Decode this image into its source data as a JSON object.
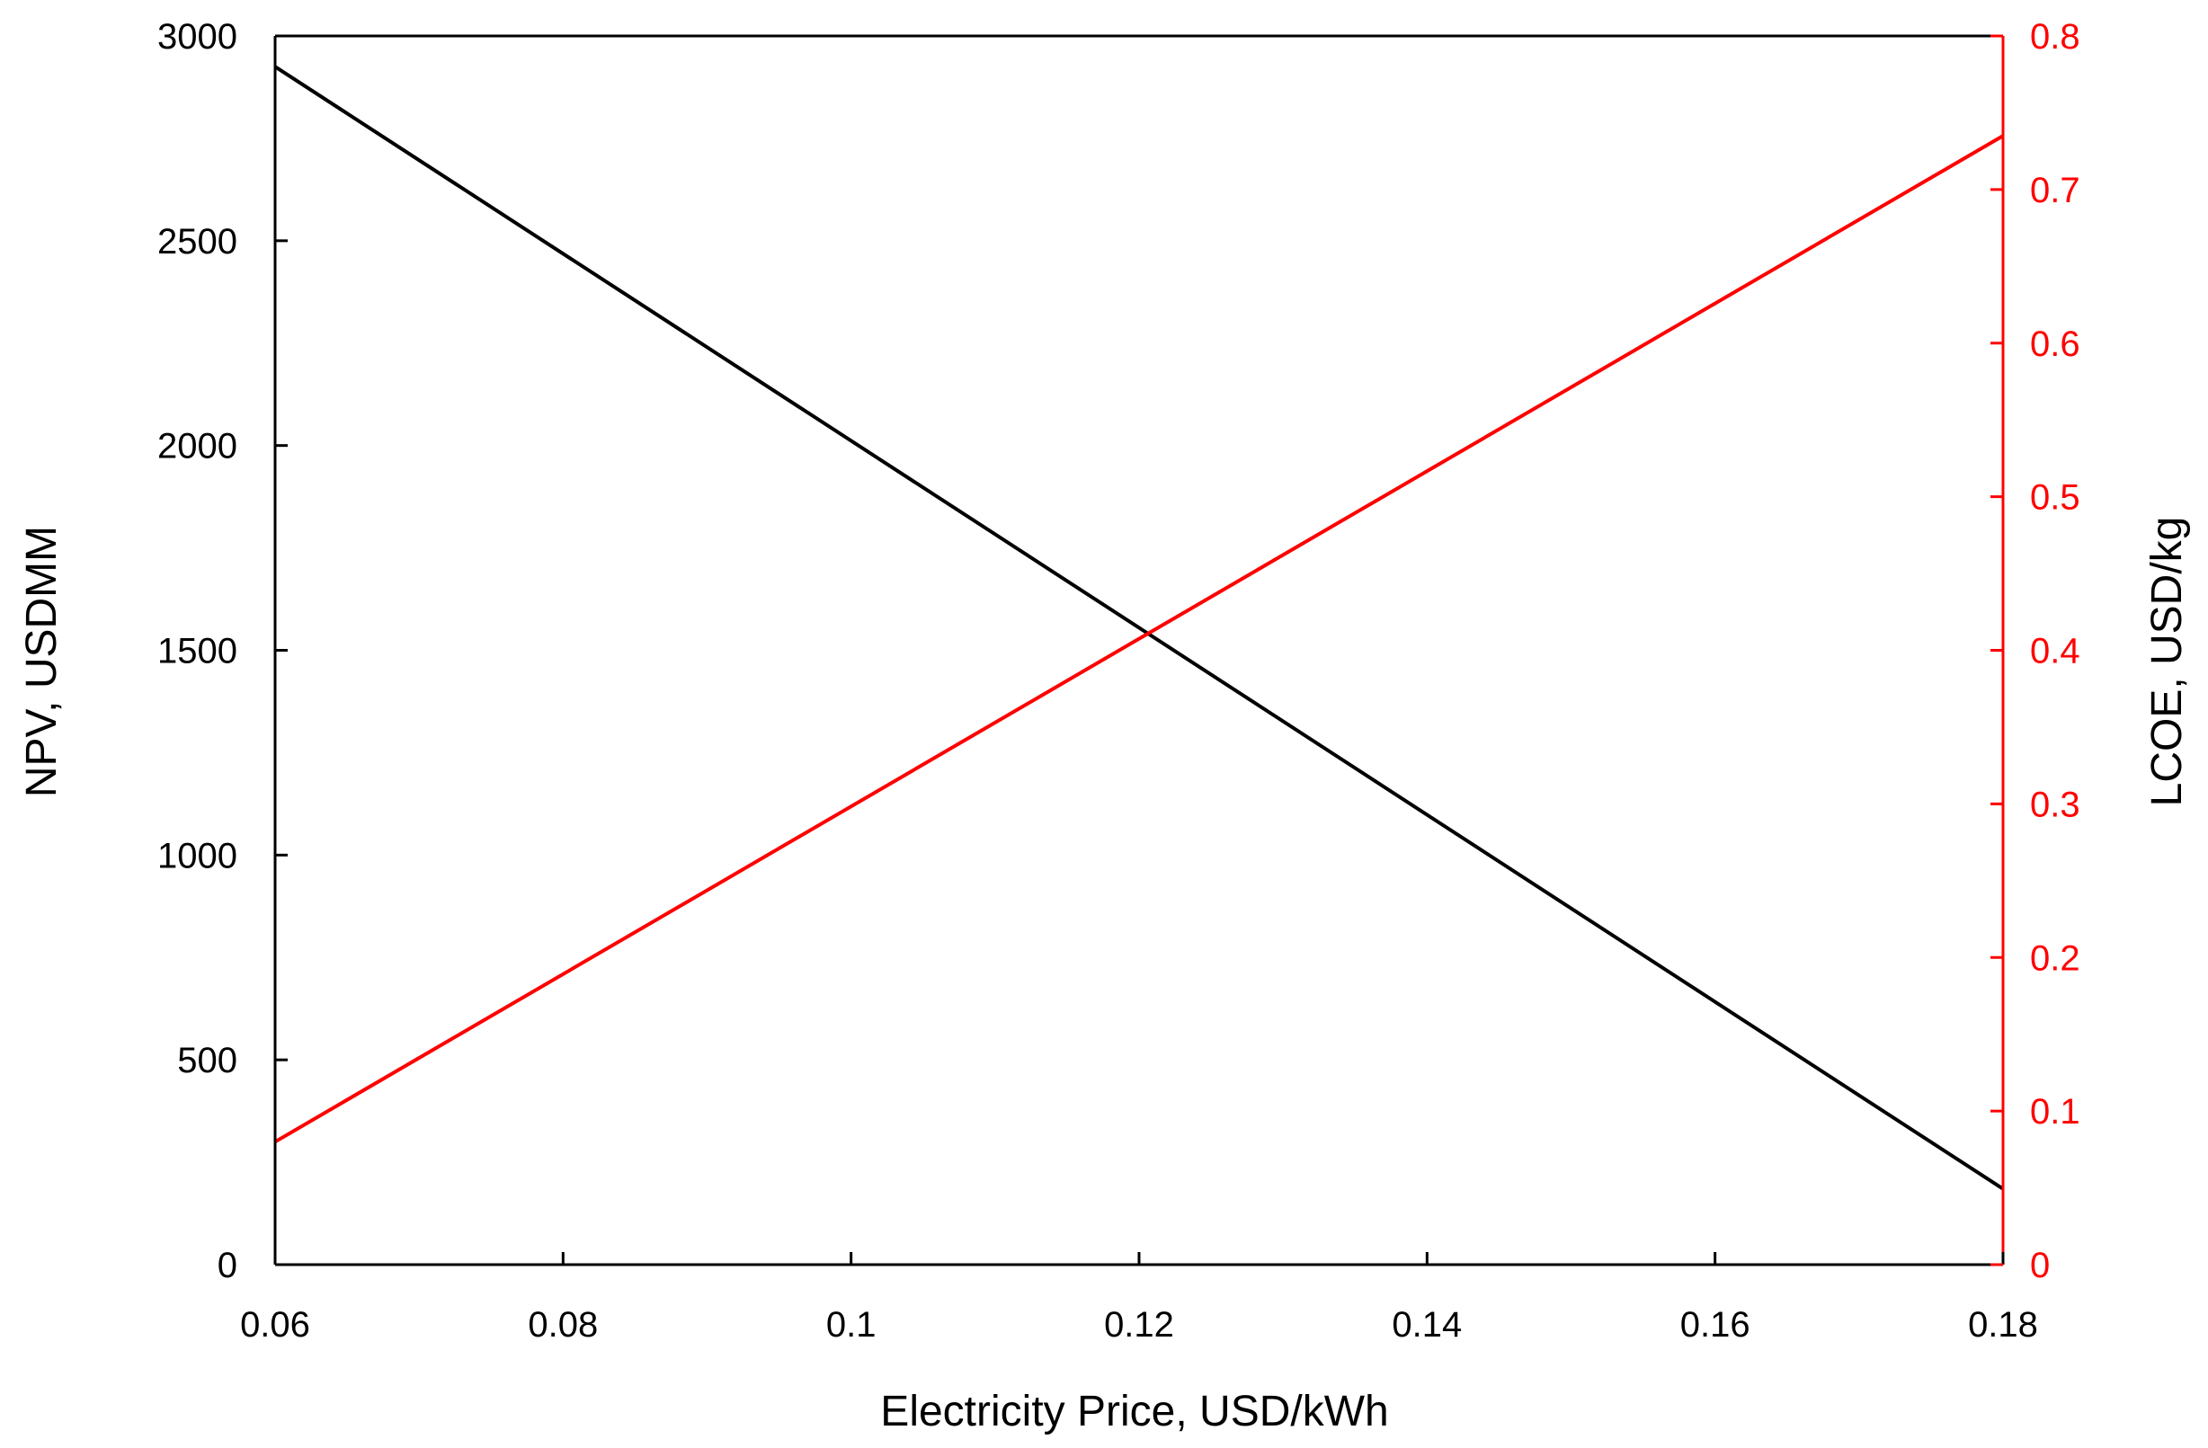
{
  "colors": {
    "background": "#ffffff",
    "npv_line": "#000000",
    "lcoe_line": "#ff0000",
    "left_axis": "#000000",
    "right_axis": "#ff0000",
    "frame": "#000000"
  },
  "chart_data": {
    "type": "line",
    "title": "",
    "xlabel": "Electricity Price, USD/kWh",
    "ylabel_left": "NPV, USDMM",
    "ylabel_right": "LCOE, USD/kg",
    "xlim": [
      0.06,
      0.18
    ],
    "ylim_left": [
      0,
      3000
    ],
    "ylim_right": [
      0,
      0.8
    ],
    "x_ticks": [
      0.06,
      0.08,
      0.1,
      0.12,
      0.14,
      0.16,
      0.18
    ],
    "x_tick_labels": [
      "0.06",
      "0.08",
      "0.1",
      "0.12",
      "0.14",
      "0.16",
      "0.18"
    ],
    "y_left_ticks": [
      0,
      500,
      1000,
      1500,
      2000,
      2500,
      3000
    ],
    "y_left_tick_labels": [
      "0",
      "500",
      "1000",
      "1500",
      "2000",
      "2500",
      "3000"
    ],
    "y_right_ticks": [
      0,
      0.1,
      0.2,
      0.3,
      0.4,
      0.5,
      0.6,
      0.7,
      0.8
    ],
    "y_right_tick_labels": [
      "0",
      "0.1",
      "0.2",
      "0.3",
      "0.4",
      "0.5",
      "0.6",
      "0.7",
      "0.8"
    ],
    "grid": false,
    "legend": "none",
    "series": [
      {
        "axis": "left",
        "color": "#000000",
        "x": [
          0.06,
          0.18
        ],
        "y": [
          2925,
          185
        ]
      },
      {
        "axis": "right",
        "color": "#ff0000",
        "x": [
          0.06,
          0.18
        ],
        "y": [
          0.08,
          0.735
        ]
      }
    ]
  }
}
